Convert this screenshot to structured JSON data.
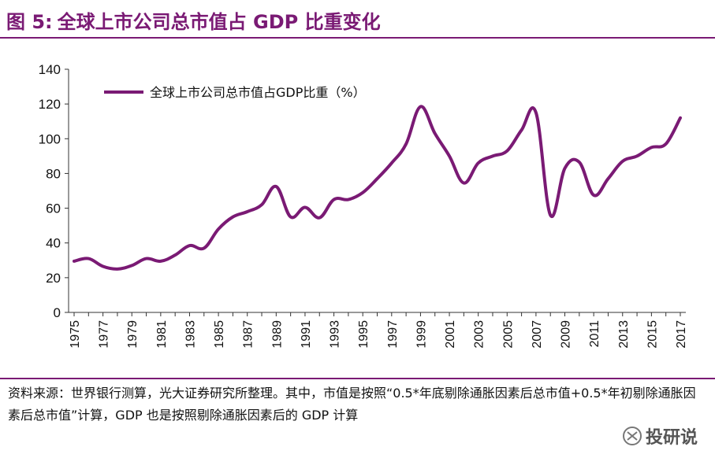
{
  "header": {
    "figure_label": "图 5:",
    "title": "全球上市公司总市值占 GDP 比重变化"
  },
  "chart_data": {
    "type": "line",
    "title": "全球上市公司总市值占 GDP 比重变化",
    "xlabel": "",
    "ylabel": "",
    "ylim": [
      0,
      140
    ],
    "yticks": [
      0,
      20,
      40,
      60,
      80,
      100,
      120,
      140
    ],
    "xtick_labels": [
      "1975",
      "1977",
      "1979",
      "1981",
      "1983",
      "1985",
      "1987",
      "1989",
      "1991",
      "1993",
      "1995",
      "1997",
      "1999",
      "2001",
      "2003",
      "2005",
      "2007",
      "2009",
      "2011",
      "2013",
      "2015",
      "2017"
    ],
    "x": [
      1975,
      1976,
      1977,
      1978,
      1979,
      1980,
      1981,
      1982,
      1983,
      1984,
      1985,
      1986,
      1987,
      1988,
      1989,
      1990,
      1991,
      1992,
      1993,
      1994,
      1995,
      1996,
      1997,
      1998,
      1999,
      2000,
      2001,
      2002,
      2003,
      2004,
      2005,
      2006,
      2007,
      2008,
      2009,
      2010,
      2011,
      2012,
      2013,
      2014,
      2015,
      2016,
      2017
    ],
    "series": [
      {
        "name": "全球上市公司总市值占GDP比重（%）",
        "color": "#7a1a74",
        "values": [
          29.5,
          31,
          26.5,
          25,
          27,
          31,
          29.5,
          33,
          38.5,
          37,
          48,
          55,
          58,
          62,
          72.5,
          55,
          60.5,
          54.5,
          65,
          65,
          69,
          77,
          86,
          97,
          118.5,
          103,
          90,
          74.5,
          86,
          90,
          93,
          105,
          115,
          56,
          83,
          86.5,
          67.5,
          77,
          87,
          90,
          95,
          97,
          112
        ]
      }
    ],
    "legend_position": "top-left",
    "grid": false
  },
  "footer": {
    "source_text": "资料来源：世界银行测算，光大证券研究所整理。其中，市值是按照“0.5*年底剔除通胀因素后总市值+0.5*年初剔除通胀因素后总市值”计算，GDP 也是按照剔除通胀因素后的 GDP 计算",
    "watermark": "投研说"
  }
}
